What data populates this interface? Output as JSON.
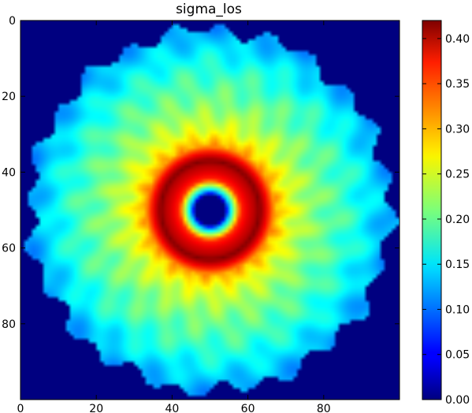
{
  "chart_data": {
    "type": "heatmap",
    "title": "sigma_los",
    "xlabel": "",
    "ylabel": "",
    "grid_size": [
      100,
      100
    ],
    "xlim": [
      0,
      100
    ],
    "ylim": [
      100,
      0
    ],
    "x_ticks": [
      0,
      20,
      40,
      60,
      80
    ],
    "y_ticks": [
      0,
      20,
      40,
      60,
      80
    ],
    "colormap": "jet",
    "vmin": 0.0,
    "vmax": 0.42,
    "colorbar_ticks": [
      "0.00",
      "0.05",
      "0.10",
      "0.15",
      "0.20",
      "0.25",
      "0.30",
      "0.35",
      "0.40"
    ],
    "background_value": 0.0,
    "center": [
      50,
      50
    ],
    "radial_profile": [
      {
        "r": 0,
        "value": 0.0
      },
      {
        "r": 4,
        "value": 0.0
      },
      {
        "r": 5,
        "value": 0.13
      },
      {
        "r": 6,
        "value": 0.19
      },
      {
        "r": 8,
        "value": 0.35
      },
      {
        "r": 10,
        "value": 0.38
      },
      {
        "r": 12,
        "value": 0.4
      },
      {
        "r": 13,
        "value": 0.42
      },
      {
        "r": 15,
        "value": 0.37
      },
      {
        "r": 17,
        "value": 0.3
      },
      {
        "r": 21,
        "value": 0.25
      },
      {
        "r": 28,
        "value": 0.21
      },
      {
        "r": 36,
        "value": 0.18
      },
      {
        "r": 44,
        "value": 0.14
      },
      {
        "r": 48,
        "value": 0.12
      }
    ],
    "outer_radius": 47.5
  },
  "colors": {
    "background": "#ffffff",
    "axis": "#000000"
  }
}
